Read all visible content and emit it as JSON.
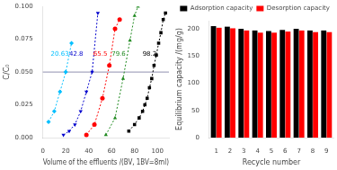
{
  "chart_data": [
    {
      "type": "line",
      "x_label": "Volume of the effluents /(BV, 1BV=8ml)",
      "y_label": "C/C₀",
      "xlim": [
        0,
        110
      ],
      "ylim": [
        0,
        0.1
      ],
      "xticks": [
        0,
        20,
        40,
        60,
        80,
        100
      ],
      "yticks": [
        {
          "value": 0,
          "label": "0.000"
        },
        0.025,
        {
          "value": 0.05,
          "label": "0.050"
        },
        0.075,
        {
          "value": 0.1,
          "label": "0.100"
        }
      ],
      "grid": false,
      "series": [
        {
          "color": "#00BFFF",
          "marker": "diamond",
          "line_style": "dashed",
          "x": [
            5,
            10,
            15,
            20,
            25
          ],
          "values": [
            0.012,
            0.02,
            0.035,
            0.05,
            0.072
          ]
        },
        {
          "color": "#0000CD",
          "marker": "triangle-down",
          "line_style": "dashed",
          "x": [
            18,
            23,
            28,
            33,
            38,
            43,
            48
          ],
          "values": [
            0.002,
            0.005,
            0.01,
            0.02,
            0.035,
            0.05,
            0.095
          ]
        },
        {
          "color": "#FF0000",
          "marker": "circle",
          "line_style": "dashed",
          "x": [
            38,
            45,
            52,
            58,
            63,
            67
          ],
          "values": [
            0.002,
            0.01,
            0.03,
            0.055,
            0.083,
            0.09
          ]
        },
        {
          "color": "#228B22",
          "marker": "triangle",
          "line_style": "dashed",
          "x": [
            55,
            63,
            70,
            76,
            80,
            83
          ],
          "values": [
            0.002,
            0.015,
            0.045,
            0.074,
            0.093,
            0.1
          ]
        },
        {
          "color": "#000000",
          "marker": "square",
          "line_style": "dashed",
          "x": [
            75,
            80,
            84,
            87,
            89,
            91,
            93,
            95,
            97,
            99,
            101,
            103,
            105,
            107
          ],
          "values": [
            0.005,
            0.01,
            0.015,
            0.02,
            0.025,
            0.03,
            0.038,
            0.045,
            0.055,
            0.063,
            0.072,
            0.08,
            0.09,
            0.095
          ]
        }
      ],
      "hlines": [
        {
          "y": 0.05,
          "color": "#9090B0"
        }
      ],
      "annotations": [
        {
          "text": "20.63",
          "x": 7,
          "y": 0.061,
          "color": "#00BFFF"
        },
        {
          "text": "42.8",
          "x": 23,
          "y": 0.061,
          "color": "#0000CD"
        },
        {
          "text": "65.5",
          "x": 44,
          "y": 0.061,
          "color": "#FF0000"
        },
        {
          "text": "79.6",
          "x": 60,
          "y": 0.061,
          "color": "#228B22"
        },
        {
          "text": "98.2",
          "x": 87,
          "y": 0.061,
          "color": "#000000"
        }
      ]
    },
    {
      "type": "bar",
      "x_label": "Recycle number",
      "y_label": "Equilibrium capacity /(mg/g)",
      "categories": [
        1,
        2,
        3,
        4,
        5,
        6,
        7,
        8,
        9
      ],
      "ylim": [
        0,
        215
      ],
      "yticks": [
        0,
        50,
        100,
        150,
        200
      ],
      "grid": false,
      "legend": "upper right",
      "series": [
        {
          "name": "Adsorption capacity",
          "color": "#000000",
          "values": [
            205,
            204,
            200,
            197,
            196,
            198,
            200,
            197,
            197
          ]
        },
        {
          "name": "Desorption capacity",
          "color": "#FF0000",
          "values": [
            202,
            201,
            197,
            193,
            193,
            195,
            197,
            194,
            194
          ]
        }
      ]
    }
  ]
}
